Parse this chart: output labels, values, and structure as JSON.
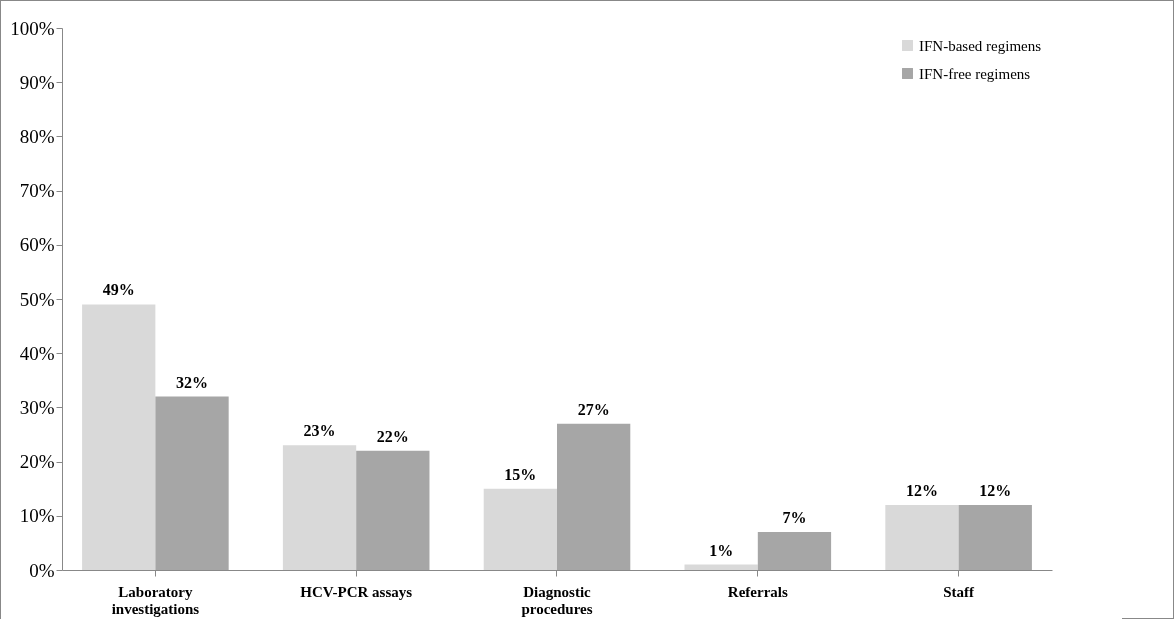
{
  "chart_data": {
    "type": "bar",
    "categories": [
      "Laboratory investigations",
      "HCV-PCR assays",
      "Diagnostic procedures",
      "Referrals",
      "Staff"
    ],
    "series": [
      {
        "name": "IFN-based regimens",
        "color": "#d9d9d9",
        "values": [
          49,
          23,
          15,
          1,
          12
        ],
        "value_labels": [
          "49%",
          "23%",
          "15%",
          "1%",
          "12%"
        ]
      },
      {
        "name": "IFN-free regimens",
        "color": "#a6a6a6",
        "values": [
          32,
          22,
          27,
          7,
          12
        ],
        "value_labels": [
          "32%",
          "22%",
          "27%",
          "7%",
          "12%"
        ]
      }
    ],
    "ylim": [
      0,
      100
    ],
    "yticks": [
      {
        "value": 0,
        "label": "0%"
      },
      {
        "value": 10,
        "label": "10%"
      },
      {
        "value": 20,
        "label": "20%"
      },
      {
        "value": 30,
        "label": "30%"
      },
      {
        "value": 40,
        "label": "40%"
      },
      {
        "value": 50,
        "label": "50%"
      },
      {
        "value": 60,
        "label": "60%"
      },
      {
        "value": 70,
        "label": "70%"
      },
      {
        "value": 80,
        "label": "80%"
      },
      {
        "value": 90,
        "label": "90%"
      },
      {
        "value": 100,
        "label": "100%"
      }
    ],
    "grid": false,
    "legend": "top right"
  }
}
